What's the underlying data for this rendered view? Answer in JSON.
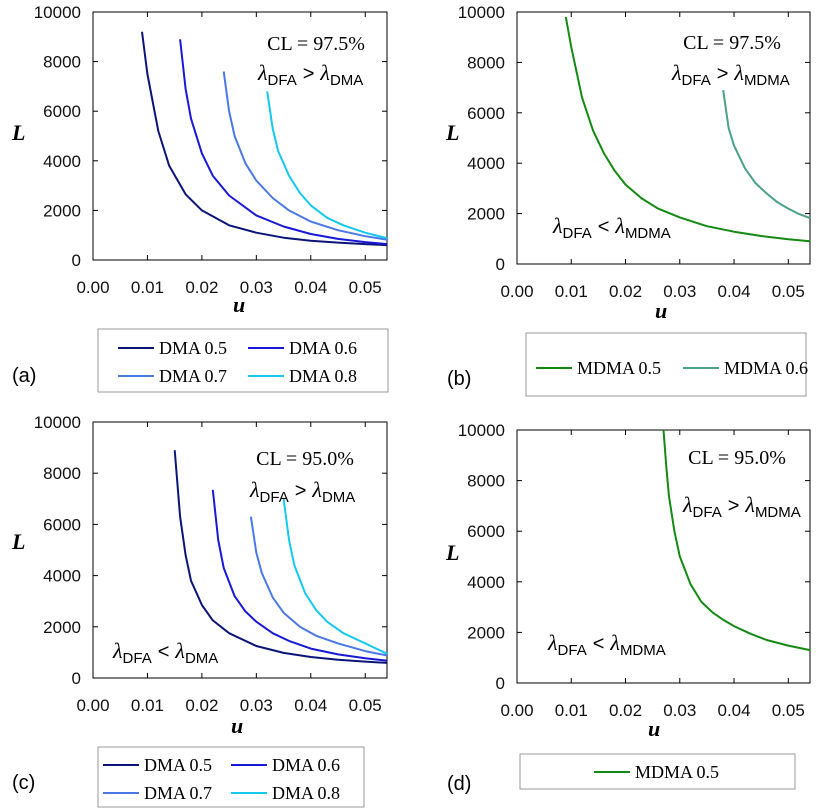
{
  "chart_data": [
    {
      "panel": "a",
      "type": "line",
      "title": "",
      "xlabel": "u",
      "ylabel": "L",
      "xlim": [
        0,
        0.054
      ],
      "ylim": [
        0,
        10000
      ],
      "xticks": [
        "0.00",
        "0.01",
        "0.02",
        "0.03",
        "0.04",
        "0.05"
      ],
      "yticks": [
        "0",
        "2000",
        "4000",
        "6000",
        "8000",
        "10000"
      ],
      "tag": "(a)",
      "annotation": {
        "cl": "CL = 97.5%",
        "upper": {
          "lam": "λ",
          "sub1": "DFA",
          "rel": ">",
          "sub2": "DMA"
        }
      },
      "series": [
        {
          "name": "DMA 0.5",
          "color": "#0b1478",
          "x": [
            0.009,
            0.01,
            0.012,
            0.014,
            0.017,
            0.02,
            0.025,
            0.03,
            0.035,
            0.04,
            0.045,
            0.05,
            0.054
          ],
          "y": [
            9200,
            7500,
            5200,
            3800,
            2650,
            2000,
            1400,
            1100,
            900,
            780,
            700,
            640,
            600
          ]
        },
        {
          "name": "DMA 0.6",
          "color": "#1818d6",
          "x": [
            0.016,
            0.017,
            0.018,
            0.02,
            0.022,
            0.025,
            0.03,
            0.035,
            0.04,
            0.045,
            0.05,
            0.054
          ],
          "y": [
            8900,
            6900,
            5700,
            4300,
            3400,
            2600,
            1800,
            1350,
            1050,
            850,
            720,
            640
          ]
        },
        {
          "name": "DMA 0.7",
          "color": "#4a78e6",
          "x": [
            0.024,
            0.025,
            0.026,
            0.028,
            0.03,
            0.033,
            0.036,
            0.04,
            0.045,
            0.05,
            0.054
          ],
          "y": [
            7600,
            6000,
            5000,
            3900,
            3200,
            2500,
            2000,
            1550,
            1200,
            960,
            820
          ]
        },
        {
          "name": "DMA 0.8",
          "color": "#14c8f0",
          "x": [
            0.032,
            0.033,
            0.034,
            0.036,
            0.038,
            0.04,
            0.043,
            0.046,
            0.05,
            0.054
          ],
          "y": [
            6800,
            5300,
            4400,
            3400,
            2700,
            2200,
            1700,
            1400,
            1100,
            880
          ]
        }
      ],
      "legend": {
        "rows": [
          [
            "DMA 0.5",
            "DMA 0.6"
          ],
          [
            "DMA 0.7",
            "DMA 0.8"
          ]
        ]
      }
    },
    {
      "panel": "b",
      "type": "line",
      "title": "",
      "xlabel": "u",
      "ylabel": "L",
      "xlim": [
        0,
        0.054
      ],
      "ylim": [
        0,
        10000
      ],
      "xticks": [
        "0.00",
        "0.01",
        "0.02",
        "0.03",
        "0.04",
        "0.05"
      ],
      "yticks": [
        "0",
        "2000",
        "4000",
        "6000",
        "8000",
        "10000"
      ],
      "tag": "(b)",
      "annotation": {
        "cl": "CL = 97.5%",
        "upper": {
          "lam": "λ",
          "sub1": "DFA",
          "rel": ">",
          "sub2": "MDMA"
        },
        "lower": {
          "lam": "λ",
          "sub1": "DFA",
          "rel": "<",
          "sub2": "MDMA"
        }
      },
      "series": [
        {
          "name": "MDMA 0.5",
          "color": "#138a13",
          "x": [
            0.009,
            0.01,
            0.012,
            0.014,
            0.016,
            0.018,
            0.02,
            0.023,
            0.026,
            0.03,
            0.035,
            0.04,
            0.045,
            0.05,
            0.054
          ],
          "y": [
            9800,
            8600,
            6600,
            5300,
            4400,
            3700,
            3150,
            2600,
            2200,
            1850,
            1500,
            1280,
            1110,
            980,
            900
          ]
        },
        {
          "name": "MDMA 0.6",
          "color": "#4aa088",
          "x": [
            0.038,
            0.039,
            0.04,
            0.042,
            0.044,
            0.046,
            0.048,
            0.05,
            0.052,
            0.054
          ],
          "y": [
            6900,
            5400,
            4700,
            3800,
            3200,
            2800,
            2450,
            2200,
            1980,
            1820
          ]
        }
      ],
      "legend": {
        "rows": [
          [
            "MDMA 0.5",
            "MDMA 0.6"
          ]
        ]
      }
    },
    {
      "panel": "c",
      "type": "line",
      "title": "",
      "xlabel": "u",
      "ylabel": "L",
      "xlim": [
        0,
        0.054
      ],
      "ylim": [
        0,
        10000
      ],
      "xticks": [
        "0.00",
        "0.01",
        "0.02",
        "0.03",
        "0.04",
        "0.05"
      ],
      "yticks": [
        "0",
        "2000",
        "4000",
        "6000",
        "8000",
        "10000"
      ],
      "tag": "(c)",
      "annotation": {
        "cl": "CL = 95.0%",
        "upper": {
          "lam": "λ",
          "sub1": "DFA",
          "rel": ">",
          "sub2": "DMA"
        },
        "lower": {
          "lam": "λ",
          "sub1": "DFA",
          "rel": "<",
          "sub2": "DMA"
        }
      },
      "series": [
        {
          "name": "DMA 0.5",
          "color": "#0b1478",
          "x": [
            0.015,
            0.016,
            0.017,
            0.018,
            0.02,
            0.022,
            0.025,
            0.03,
            0.035,
            0.04,
            0.045,
            0.05,
            0.054
          ],
          "y": [
            8900,
            6300,
            4800,
            3800,
            2850,
            2250,
            1750,
            1250,
            980,
            820,
            710,
            640,
            590
          ]
        },
        {
          "name": "DMA 0.6",
          "color": "#1818d6",
          "x": [
            0.022,
            0.023,
            0.024,
            0.026,
            0.028,
            0.03,
            0.033,
            0.036,
            0.04,
            0.045,
            0.05,
            0.054
          ],
          "y": [
            7350,
            5400,
            4300,
            3200,
            2600,
            2200,
            1750,
            1450,
            1150,
            920,
            770,
            680
          ]
        },
        {
          "name": "DMA 0.7",
          "color": "#4a78e6",
          "x": [
            0.029,
            0.03,
            0.031,
            0.033,
            0.035,
            0.038,
            0.041,
            0.045,
            0.05,
            0.054
          ],
          "y": [
            6300,
            4900,
            4100,
            3150,
            2550,
            2000,
            1650,
            1350,
            1050,
            880
          ]
        },
        {
          "name": "DMA 0.8",
          "color": "#14c8f0",
          "x": [
            0.035,
            0.036,
            0.037,
            0.039,
            0.041,
            0.043,
            0.046,
            0.05,
            0.054
          ],
          "y": [
            7000,
            5400,
            4400,
            3300,
            2650,
            2200,
            1750,
            1350,
            950
          ]
        }
      ],
      "legend": {
        "rows": [
          [
            "DMA 0.5",
            "DMA 0.6"
          ],
          [
            "DMA 0.7",
            "DMA 0.8"
          ]
        ]
      }
    },
    {
      "panel": "d",
      "type": "line",
      "title": "",
      "xlabel": "u",
      "ylabel": "L",
      "xlim": [
        0,
        0.054
      ],
      "ylim": [
        0,
        10000
      ],
      "xticks": [
        "0.00",
        "0.01",
        "0.02",
        "0.03",
        "0.04",
        "0.05"
      ],
      "yticks": [
        "0",
        "2000",
        "4000",
        "6000",
        "8000",
        "10000"
      ],
      "tag": "(d)",
      "annotation": {
        "cl": "CL = 95.0%",
        "upper": {
          "lam": "λ",
          "sub1": "DFA",
          "rel": ">",
          "sub2": "MDMA"
        },
        "lower": {
          "lam": "λ",
          "sub1": "DFA",
          "rel": "<",
          "sub2": "MDMA"
        }
      },
      "series": [
        {
          "name": "MDMA 0.5",
          "color": "#138a13",
          "x": [
            0.027,
            0.0275,
            0.028,
            0.029,
            0.03,
            0.032,
            0.034,
            0.036,
            0.038,
            0.04,
            0.043,
            0.046,
            0.05,
            0.054
          ],
          "y": [
            10000,
            8600,
            7400,
            6000,
            5000,
            3900,
            3200,
            2800,
            2500,
            2250,
            1950,
            1700,
            1480,
            1300
          ]
        }
      ],
      "legend": {
        "rows": [
          [
            "MDMA 0.5"
          ]
        ]
      }
    }
  ]
}
